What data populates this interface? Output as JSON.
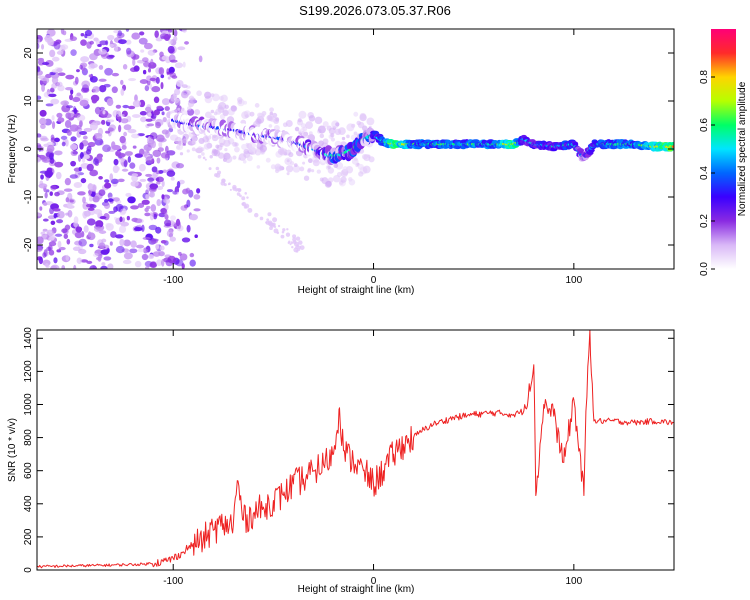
{
  "title": "S199.2026.073.05.37.R06",
  "colors": {
    "snr_line": "#ee2222",
    "colormap": [
      "#ffffff",
      "#d9b8f7",
      "#8a2be2",
      "#3a00ff",
      "#0066ff",
      "#00e5ff",
      "#00ff66",
      "#b6ff00",
      "#ffd400",
      "#ff2a2a",
      "#ff0077"
    ]
  },
  "chart_data": [
    {
      "type": "heatmap",
      "xlabel": "Height of straight line (km)",
      "ylabel": "Frequency (Hz)",
      "xlim": [
        -168,
        150
      ],
      "ylim": [
        -25,
        25
      ],
      "xticks": [
        -100,
        0,
        100
      ],
      "xtick_labels": [
        "-100",
        "0",
        "100"
      ],
      "yticks": [
        -20,
        -10,
        0,
        10,
        20
      ],
      "ytick_labels": [
        "-20",
        "-10",
        "0",
        "10",
        "20"
      ],
      "colorbar": {
        "label": "Normalized spectral amplitude",
        "range": [
          0,
          1
        ],
        "ticks": [
          0.0,
          0.2,
          0.4,
          0.6,
          0.8
        ],
        "tick_labels": [
          "0.0",
          "0.2",
          "0.4",
          "0.6",
          "0.8"
        ]
      },
      "ridge": {
        "x": [
          -100,
          -90,
          -80,
          -70,
          -60,
          -50,
          -40,
          -30,
          -25,
          -20,
          -15,
          -10,
          -5,
          0,
          5,
          10,
          20,
          40,
          60,
          70,
          75,
          80,
          90,
          100,
          105,
          110,
          120,
          130,
          140,
          150
        ],
        "y": [
          6,
          5,
          4.5,
          4,
          3,
          2.5,
          1.5,
          0,
          -1,
          -1.5,
          -1,
          0,
          2,
          3,
          1.5,
          1,
          1,
          1,
          1,
          1,
          2,
          1,
          0.5,
          1,
          -2,
          1,
          1,
          1,
          0.5,
          0.5
        ],
        "amplitude": [
          0.3,
          0.35,
          0.35,
          0.3,
          0.35,
          0.35,
          0.3,
          0.45,
          0.5,
          0.55,
          0.5,
          0.6,
          0.55,
          0.5,
          0.55,
          0.8,
          0.6,
          0.6,
          0.6,
          0.8,
          0.45,
          0.5,
          0.5,
          0.55,
          0.35,
          0.55,
          0.6,
          0.6,
          0.7,
          0.85
        ]
      }
    },
    {
      "type": "line",
      "xlabel": "Height of straight line (km)",
      "ylabel": "SNR (10 * v/v)",
      "xlim": [
        -168,
        150
      ],
      "ylim": [
        0,
        1450
      ],
      "xticks": [
        -100,
        0,
        100
      ],
      "xtick_labels": [
        "-100",
        "0",
        "100"
      ],
      "yticks": [
        0,
        200,
        400,
        600,
        800,
        1000,
        1200,
        1400
      ],
      "ytick_labels": [
        "0",
        "200",
        "400",
        "600",
        "800",
        "1000",
        "1200",
        "1400"
      ],
      "series": [
        {
          "x": [
            -168,
            -150,
            -130,
            -115,
            -105,
            -100,
            -95,
            -90,
            -85,
            -80,
            -75,
            -70,
            -68,
            -65,
            -60,
            -55,
            -50,
            -45,
            -40,
            -35,
            -30,
            -25,
            -20,
            -17,
            -15,
            -10,
            -5,
            0,
            5,
            10,
            15,
            20,
            25,
            30,
            40,
            50,
            60,
            70,
            75,
            80,
            81,
            85,
            90,
            95,
            100,
            105,
            106,
            108,
            110,
            120,
            130,
            140,
            150
          ],
          "y": [
            20,
            25,
            30,
            35,
            50,
            70,
            110,
            160,
            190,
            240,
            280,
            270,
            540,
            300,
            340,
            380,
            420,
            450,
            520,
            550,
            600,
            640,
            700,
            980,
            720,
            650,
            600,
            520,
            600,
            700,
            760,
            800,
            850,
            880,
            920,
            940,
            950,
            940,
            960,
            1240,
            450,
            1000,
            930,
            650,
            1030,
            450,
            960,
            1450,
            900,
            900,
            890,
            900,
            890
          ]
        }
      ]
    }
  ]
}
